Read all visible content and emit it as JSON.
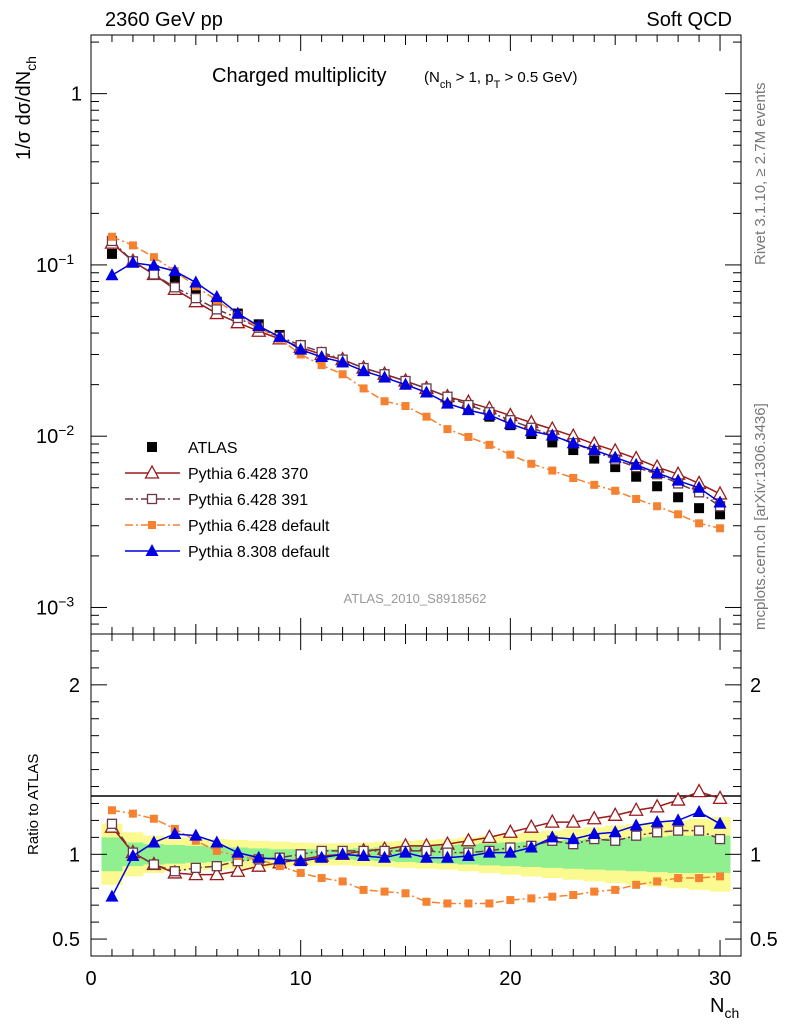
{
  "header": {
    "left": "2360 GeV pp",
    "right": "Soft QCD"
  },
  "side": {
    "rivet": "Rivet 3.1.10, ≥ 2.7M events",
    "mcplots": "mcplots.cern.ch [arXiv:1306.3436]"
  },
  "chart_data": [
    {
      "type": "line",
      "title_main": "Charged multiplicity",
      "title_cuts": "(N_ch > 1, p_T > 0.5 GeV)",
      "ylabel": "1/σ dσ/dN_ch",
      "xlabel": "N_ch",
      "y_scale": "log",
      "xlim": [
        0,
        31
      ],
      "ylim": [
        0.0007,
        2.2
      ],
      "y_ticks": [
        "10⁻³",
        "10⁻²",
        "10⁻¹",
        "1"
      ],
      "legend_position": "bottom-left",
      "analysis_id": "ATLAS_2010_S8918562",
      "x": [
        1,
        2,
        3,
        4,
        5,
        6,
        7,
        8,
        9,
        10,
        11,
        12,
        13,
        14,
        15,
        16,
        17,
        18,
        19,
        20,
        21,
        22,
        23,
        24,
        25,
        26,
        27,
        28,
        29,
        30
      ],
      "series": [
        {
          "name": "ATLAS",
          "color": "#000000",
          "marker": "square-filled",
          "line": "none",
          "values": [
            0.116,
            0.104,
            0.093,
            0.082,
            0.071,
            0.061,
            0.052,
            0.045,
            0.039,
            0.034,
            0.03,
            0.027,
            0.024,
            0.022,
            0.02,
            0.018,
            0.0158,
            0.0143,
            0.013,
            0.0116,
            0.0103,
            0.0092,
            0.0083,
            0.0074,
            0.0066,
            0.0058,
            0.0051,
            0.0044,
            0.0038,
            0.0035
          ]
        },
        {
          "name": "Pythia 6.428 370",
          "color": "#9b1b1b",
          "marker": "triangle-open",
          "line": "solid",
          "values": [
            0.134,
            0.105,
            0.088,
            0.072,
            0.061,
            0.052,
            0.046,
            0.041,
            0.037,
            0.033,
            0.03,
            0.028,
            0.025,
            0.023,
            0.021,
            0.019,
            0.017,
            0.0158,
            0.0145,
            0.0132,
            0.012,
            0.011,
            0.01,
            0.009,
            0.0082,
            0.0074,
            0.0066,
            0.006,
            0.0053,
            0.0046
          ]
        },
        {
          "name": "Pythia 6.428 391",
          "color": "#6a3a4a",
          "marker": "square-open",
          "line": "dashdot",
          "values": [
            0.138,
            0.105,
            0.088,
            0.074,
            0.064,
            0.055,
            0.049,
            0.043,
            0.038,
            0.034,
            0.031,
            0.028,
            0.025,
            0.023,
            0.021,
            0.019,
            0.017,
            0.0152,
            0.0138,
            0.0124,
            0.0112,
            0.0101,
            0.0091,
            0.0082,
            0.0073,
            0.0066,
            0.006,
            0.0053,
            0.0047,
            0.0039
          ]
        },
        {
          "name": "Pythia 6.428 default",
          "color": "#f58231",
          "marker": "square-small",
          "line": "dashdot",
          "values": [
            0.146,
            0.13,
            0.111,
            0.092,
            0.075,
            0.062,
            0.051,
            0.043,
            0.037,
            0.03,
            0.026,
            0.023,
            0.019,
            0.016,
            0.015,
            0.013,
            0.011,
            0.0099,
            0.0089,
            0.0078,
            0.0069,
            0.0063,
            0.0057,
            0.0052,
            0.0048,
            0.0043,
            0.0039,
            0.0035,
            0.0031,
            0.0029
          ]
        },
        {
          "name": "Pythia 8.308 default",
          "color": "#0000e0",
          "marker": "triangle-filled",
          "line": "solid",
          "values": [
            0.087,
            0.103,
            0.099,
            0.092,
            0.079,
            0.065,
            0.052,
            0.044,
            0.038,
            0.032,
            0.029,
            0.027,
            0.024,
            0.022,
            0.02,
            0.018,
            0.0155,
            0.0142,
            0.0133,
            0.0118,
            0.0107,
            0.0101,
            0.0091,
            0.0083,
            0.0075,
            0.0068,
            0.0061,
            0.0055,
            0.005,
            0.0041
          ]
        }
      ]
    },
    {
      "type": "line",
      "ylabel": "Ratio to ATLAS",
      "xlabel": "N_ch",
      "xlim": [
        0,
        31
      ],
      "ylim": [
        0.4,
        2.3
      ],
      "y_ticks": [
        "0.5",
        "1",
        "2"
      ],
      "x_ticks": [
        "0",
        "10",
        "20",
        "30"
      ],
      "uncertainty_bands": {
        "green_halfwidth": [
          0.1,
          0.07,
          0.06,
          0.055,
          0.05,
          0.045,
          0.04,
          0.035,
          0.03,
          0.03,
          0.03,
          0.03,
          0.035,
          0.04,
          0.045,
          0.05,
          0.055,
          0.06,
          0.065,
          0.07,
          0.075,
          0.08,
          0.085,
          0.09,
          0.095,
          0.1,
          0.105,
          0.11,
          0.11,
          0.11
        ],
        "yellow_halfwidth": [
          0.18,
          0.13,
          0.11,
          0.1,
          0.095,
          0.09,
          0.085,
          0.08,
          0.075,
          0.07,
          0.065,
          0.065,
          0.07,
          0.075,
          0.08,
          0.085,
          0.09,
          0.1,
          0.11,
          0.12,
          0.13,
          0.14,
          0.15,
          0.16,
          0.17,
          0.18,
          0.19,
          0.2,
          0.21,
          0.22
        ],
        "green_color": "#90f090",
        "yellow_color": "#fafa90"
      },
      "series": [
        {
          "name": "Pythia 6.428 370",
          "color": "#9b1b1b",
          "marker": "triangle-open",
          "line": "solid",
          "values": [
            1.16,
            1.01,
            0.94,
            0.89,
            0.88,
            0.88,
            0.9,
            0.93,
            0.95,
            0.97,
            0.99,
            1.0,
            1.02,
            1.03,
            1.05,
            1.05,
            1.06,
            1.08,
            1.1,
            1.13,
            1.16,
            1.19,
            1.19,
            1.21,
            1.23,
            1.26,
            1.28,
            1.32,
            1.37,
            1.33
          ]
        },
        {
          "name": "Pythia 6.428 391",
          "color": "#6a3a4a",
          "marker": "square-open",
          "line": "dashdot",
          "values": [
            1.18,
            1.01,
            0.94,
            0.9,
            0.92,
            0.93,
            0.96,
            0.97,
            0.98,
            1.0,
            1.02,
            1.02,
            1.02,
            1.02,
            1.02,
            1.02,
            1.01,
            1.01,
            1.02,
            1.04,
            1.05,
            1.08,
            1.06,
            1.09,
            1.08,
            1.11,
            1.13,
            1.14,
            1.14,
            1.09
          ]
        },
        {
          "name": "Pythia 6.428 default",
          "color": "#f58231",
          "marker": "square-small",
          "line": "dashdot",
          "values": [
            1.26,
            1.24,
            1.21,
            1.15,
            1.08,
            1.02,
            0.99,
            0.97,
            0.93,
            0.89,
            0.86,
            0.84,
            0.79,
            0.78,
            0.77,
            0.72,
            0.71,
            0.71,
            0.71,
            0.73,
            0.74,
            0.75,
            0.76,
            0.78,
            0.79,
            0.82,
            0.84,
            0.86,
            0.86,
            0.87
          ]
        },
        {
          "name": "Pythia 8.308 default",
          "color": "#0000e0",
          "marker": "triangle-filled",
          "line": "solid",
          "values": [
            0.75,
            0.99,
            1.07,
            1.12,
            1.11,
            1.07,
            1.01,
            0.98,
            0.97,
            0.96,
            0.98,
            1.0,
            0.99,
            0.98,
            1.01,
            0.98,
            0.98,
            0.99,
            1.01,
            1.01,
            1.04,
            1.1,
            1.09,
            1.12,
            1.13,
            1.17,
            1.19,
            1.2,
            1.25,
            1.18
          ]
        }
      ]
    }
  ]
}
